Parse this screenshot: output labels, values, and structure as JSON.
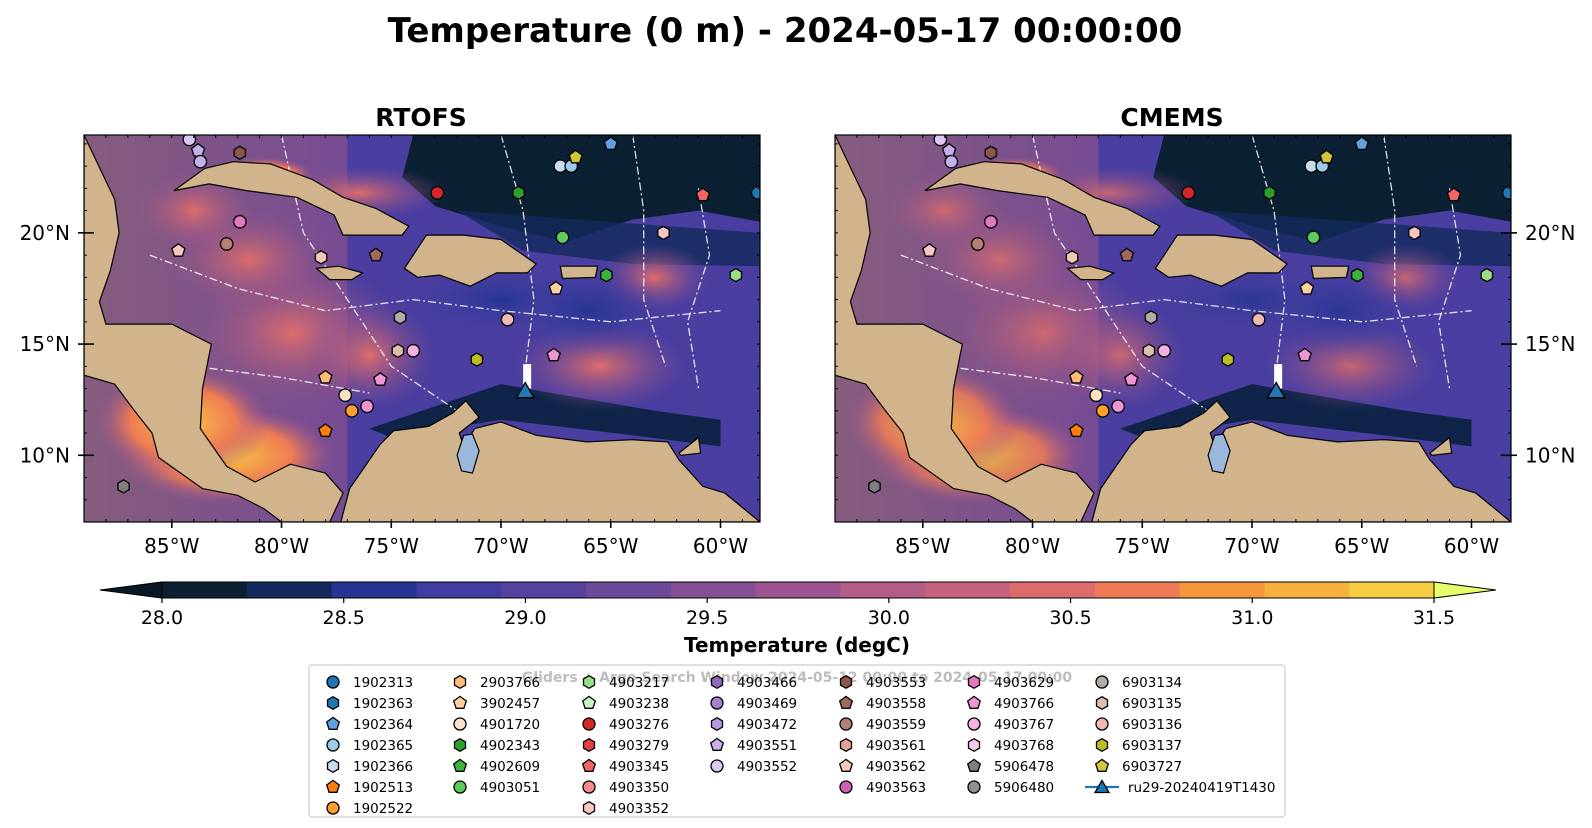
{
  "figure_title": "Temperature (0 m) - 2024-05-17 00:00:00",
  "panels": [
    {
      "title": "RTOFS",
      "lat_labels_side": "left"
    },
    {
      "title": "CMEMS",
      "lat_labels_side": "right"
    }
  ],
  "map": {
    "lon_ticks": [
      "85°W",
      "80°W",
      "75°W",
      "70°W",
      "65°W",
      "60°W"
    ],
    "lat_ticks": [
      "20°N",
      "15°N",
      "10°N"
    ],
    "land_color": "#d2b48c",
    "ocean_deep_color": "#0a1f2e",
    "glider_track_marker": "triangle"
  },
  "colorbar": {
    "label": "Temperature (degC)",
    "ticks": [
      "28.0",
      "28.5",
      "29.0",
      "29.5",
      "30.0",
      "30.5",
      "31.0",
      "31.5"
    ],
    "min": 28.0,
    "max": 31.5,
    "extend": "both",
    "colors": [
      "#0c2033",
      "#132a5e",
      "#263591",
      "#3f3ea0",
      "#58409d",
      "#6d4a99",
      "#834f95",
      "#9c5590",
      "#b25c86",
      "#c7627c",
      "#dc6c6b",
      "#ee7b55",
      "#f6963e",
      "#f8b13c",
      "#f6cc44"
    ],
    "over_color": "#e6ff6a",
    "under_color": "#081826"
  },
  "legend": {
    "watermark": "Gliders + Argo Search Window 2024-05-12 00:00 to 2024-05-17 00:00",
    "entries": [
      {
        "label": "1902313",
        "marker": "circle",
        "color": "#1f77b4"
      },
      {
        "label": "1902363",
        "marker": "hexagon",
        "color": "#1f77b4"
      },
      {
        "label": "1902364",
        "marker": "pentagon",
        "color": "#5fa2dd"
      },
      {
        "label": "1902365",
        "marker": "circle",
        "color": "#9ecae9"
      },
      {
        "label": "1902366",
        "marker": "hexagon",
        "color": "#c6dbef"
      },
      {
        "label": "1902513",
        "marker": "pentagon",
        "color": "#ff7f0e"
      },
      {
        "label": "1902522",
        "marker": "circle",
        "color": "#ff9e2c"
      },
      {
        "label": "2903766",
        "marker": "hexagon",
        "color": "#ffbb78"
      },
      {
        "label": "3902457",
        "marker": "pentagon",
        "color": "#fdd0a2"
      },
      {
        "label": "4901720",
        "marker": "circle",
        "color": "#fde0c5"
      },
      {
        "label": "4902343",
        "marker": "hexagon",
        "color": "#2ca02c"
      },
      {
        "label": "4902609",
        "marker": "pentagon",
        "color": "#3cb33c"
      },
      {
        "label": "4903051",
        "marker": "circle",
        "color": "#5ec95e"
      },
      {
        "label": "4903217",
        "marker": "hexagon",
        "color": "#98df8a"
      },
      {
        "label": "4903238",
        "marker": "pentagon",
        "color": "#c7f5c2"
      },
      {
        "label": "4903276",
        "marker": "circle",
        "color": "#d62728"
      },
      {
        "label": "4903279",
        "marker": "hexagon",
        "color": "#e0403f"
      },
      {
        "label": "4903345",
        "marker": "pentagon",
        "color": "#f26464"
      },
      {
        "label": "4903350",
        "marker": "circle",
        "color": "#f28e8e"
      },
      {
        "label": "4903352",
        "marker": "hexagon",
        "color": "#f7c6c0"
      },
      {
        "label": "4903466",
        "marker": "hexagon",
        "color": "#9467bd"
      },
      {
        "label": "4903469",
        "marker": "circle",
        "color": "#a57fd0"
      },
      {
        "label": "4903472",
        "marker": "hexagon",
        "color": "#b598e0"
      },
      {
        "label": "4903551",
        "marker": "pentagon",
        "color": "#c5b0eb"
      },
      {
        "label": "4903552",
        "marker": "circle",
        "color": "#d8c8f2"
      },
      {
        "label": "4903553",
        "marker": "hexagon",
        "color": "#8c564b"
      },
      {
        "label": "4903558",
        "marker": "pentagon",
        "color": "#a0695e"
      },
      {
        "label": "4903559",
        "marker": "circle",
        "color": "#b57f73"
      },
      {
        "label": "4903561",
        "marker": "hexagon",
        "color": "#e0a398"
      },
      {
        "label": "4903562",
        "marker": "pentagon",
        "color": "#f3c8bb"
      },
      {
        "label": "4903563",
        "marker": "circle",
        "color": "#d05fb8"
      },
      {
        "label": "4903629",
        "marker": "hexagon",
        "color": "#e377c2"
      },
      {
        "label": "4903766",
        "marker": "pentagon",
        "color": "#ee96d3"
      },
      {
        "label": "4903767",
        "marker": "circle",
        "color": "#f4b0de"
      },
      {
        "label": "4903768",
        "marker": "hexagon",
        "color": "#f8c9e8"
      },
      {
        "label": "5906478",
        "marker": "pentagon",
        "color": "#7f7f7f"
      },
      {
        "label": "5906480",
        "marker": "circle",
        "color": "#8f8f8f"
      },
      {
        "label": "6903134",
        "marker": "circle",
        "color": "#b3aaa3"
      },
      {
        "label": "6903135",
        "marker": "hexagon",
        "color": "#ddbfb0"
      },
      {
        "label": "6903136",
        "marker": "circle",
        "color": "#f1b8b2"
      },
      {
        "label": "6903137",
        "marker": "hexagon",
        "color": "#bcbd22"
      },
      {
        "label": "6903727",
        "marker": "pentagon",
        "color": "#d4c43a"
      },
      {
        "label": "ru29-20240419T1430",
        "marker": "triangle-line",
        "color": "#1f77b4"
      }
    ]
  },
  "floats_on_map": [
    {
      "lon": -84.2,
      "lat": 24.2,
      "marker": "circle",
      "color": "#d8c8f2"
    },
    {
      "lon": -83.8,
      "lat": 23.7,
      "marker": "pentagon",
      "color": "#c5b0eb"
    },
    {
      "lon": -83.7,
      "lat": 23.2,
      "marker": "circle",
      "color": "#c5b0eb"
    },
    {
      "lon": -81.9,
      "lat": 23.6,
      "marker": "hexagon",
      "color": "#8c564b"
    },
    {
      "lon": -81.9,
      "lat": 20.5,
      "marker": "circle",
      "color": "#e377c2"
    },
    {
      "lon": -84.7,
      "lat": 19.2,
      "marker": "pentagon",
      "color": "#f7c6c0"
    },
    {
      "lon": -82.5,
      "lat": 19.5,
      "marker": "circle",
      "color": "#b57f73"
    },
    {
      "lon": -78.2,
      "lat": 18.9,
      "marker": "hexagon",
      "color": "#f3c8bb"
    },
    {
      "lon": -75.7,
      "lat": 19.0,
      "marker": "pentagon",
      "color": "#a0695e"
    },
    {
      "lon": -72.9,
      "lat": 21.8,
      "marker": "circle",
      "color": "#d62728"
    },
    {
      "lon": -69.2,
      "lat": 21.8,
      "marker": "hexagon",
      "color": "#2ca02c"
    },
    {
      "lon": -67.3,
      "lat": 23.0,
      "marker": "circle",
      "color": "#c6dbef"
    },
    {
      "lon": -66.8,
      "lat": 23.0,
      "marker": "circle",
      "color": "#9ecae9"
    },
    {
      "lon": -66.6,
      "lat": 23.4,
      "marker": "pentagon",
      "color": "#d4c43a"
    },
    {
      "lon": -65.0,
      "lat": 24.0,
      "marker": "pentagon",
      "color": "#5fa2dd"
    },
    {
      "lon": -60.8,
      "lat": 21.7,
      "marker": "pentagon",
      "color": "#f26464"
    },
    {
      "lon": -58.3,
      "lat": 21.8,
      "marker": "circle",
      "color": "#1f77b4"
    },
    {
      "lon": -62.6,
      "lat": 20.0,
      "marker": "hexagon",
      "color": "#f7c6c0"
    },
    {
      "lon": -67.2,
      "lat": 19.8,
      "marker": "circle",
      "color": "#5ec95e"
    },
    {
      "lon": -65.2,
      "lat": 18.1,
      "marker": "hexagon",
      "color": "#3cb33c"
    },
    {
      "lon": -59.3,
      "lat": 18.1,
      "marker": "hexagon",
      "color": "#98df8a"
    },
    {
      "lon": -67.5,
      "lat": 17.5,
      "marker": "pentagon",
      "color": "#fdd0a2"
    },
    {
      "lon": -74.6,
      "lat": 16.2,
      "marker": "hexagon",
      "color": "#b3aaa3"
    },
    {
      "lon": -69.7,
      "lat": 16.1,
      "marker": "circle",
      "color": "#f1b8b2"
    },
    {
      "lon": -74.7,
      "lat": 14.7,
      "marker": "hexagon",
      "color": "#ddbfb0"
    },
    {
      "lon": -74.0,
      "lat": 14.7,
      "marker": "circle",
      "color": "#f4b0de"
    },
    {
      "lon": -71.1,
      "lat": 14.3,
      "marker": "hexagon",
      "color": "#bcbd22"
    },
    {
      "lon": -67.6,
      "lat": 14.5,
      "marker": "pentagon",
      "color": "#ee96d3"
    },
    {
      "lon": -78.0,
      "lat": 13.5,
      "marker": "pentagon",
      "color": "#ffbb78"
    },
    {
      "lon": -75.5,
      "lat": 13.4,
      "marker": "pentagon",
      "color": "#ee96d3"
    },
    {
      "lon": -77.1,
      "lat": 12.7,
      "marker": "circle",
      "color": "#fde0c5"
    },
    {
      "lon": -76.8,
      "lat": 12.0,
      "marker": "circle",
      "color": "#ff9e2c"
    },
    {
      "lon": -76.1,
      "lat": 12.2,
      "marker": "circle",
      "color": "#ee96d3"
    },
    {
      "lon": -78.0,
      "lat": 11.1,
      "marker": "pentagon",
      "color": "#ff7f0e"
    },
    {
      "lon": -87.2,
      "lat": 8.6,
      "marker": "hexagon",
      "color": "#7f7f7f"
    }
  ],
  "glider_position": {
    "lon": -68.9,
    "lat": 12.9,
    "color": "#1f77b4"
  }
}
